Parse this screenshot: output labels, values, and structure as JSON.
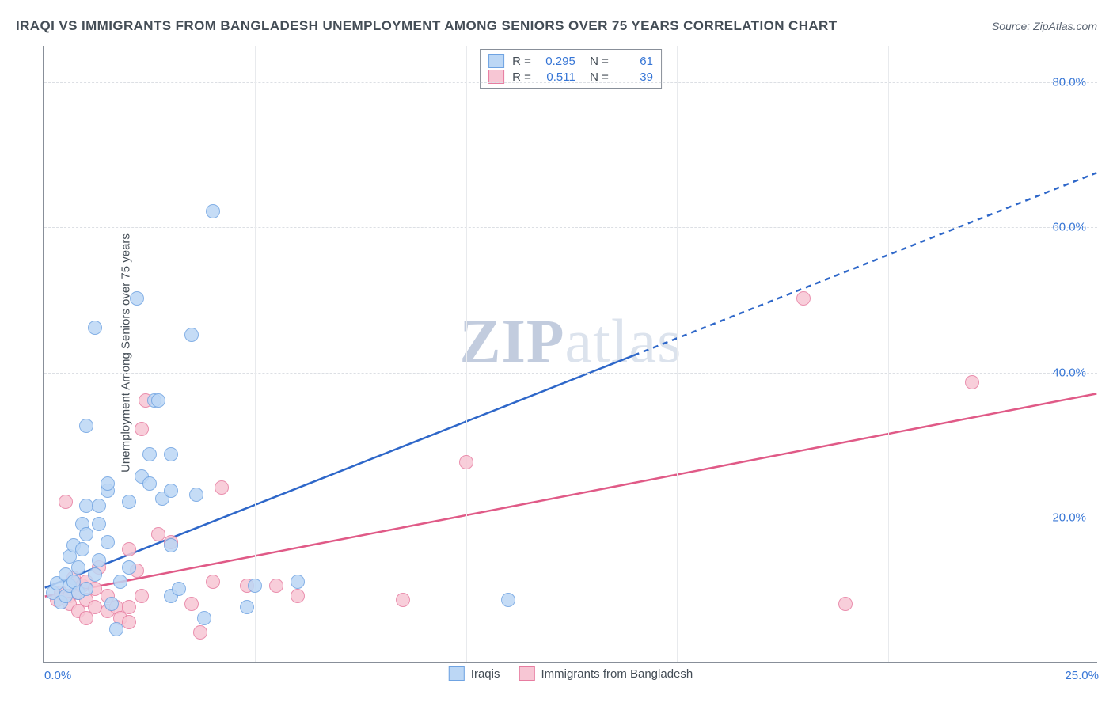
{
  "header": {
    "title": "IRAQI VS IMMIGRANTS FROM BANGLADESH UNEMPLOYMENT AMONG SENIORS OVER 75 YEARS CORRELATION CHART",
    "source": "Source: ZipAtlas.com"
  },
  "watermark": {
    "bold": "ZIP",
    "light": "atlas"
  },
  "chart": {
    "type": "scatter",
    "ylabel": "Unemployment Among Seniors over 75 years",
    "xlim": [
      0,
      25
    ],
    "ylim": [
      0,
      85
    ],
    "ytick_values": [
      20,
      40,
      60,
      80
    ],
    "ytick_labels": [
      "20.0%",
      "40.0%",
      "60.0%",
      "80.0%"
    ],
    "grid_h_values": [
      20,
      40,
      60,
      80
    ],
    "grid_v_values": [
      5,
      10,
      15,
      20
    ],
    "x_first_label": "0.0%",
    "x_last_label": "25.0%",
    "grid_color": "#dcdfe4",
    "background_color": "#ffffff",
    "series": [
      {
        "name": "Iraqis",
        "fill": "#bcd7f5",
        "stroke": "#6fa3e2",
        "line_color": "#2e67c9",
        "R": "0.295",
        "N": "61",
        "regression": {
          "x1": 0,
          "y1": 10.2,
          "x2": 25,
          "y2": 67.5,
          "x_solid_max": 14.0
        },
        "points": [
          [
            0.2,
            9.5
          ],
          [
            0.3,
            10.8
          ],
          [
            0.4,
            8.2
          ],
          [
            0.5,
            12.0
          ],
          [
            0.5,
            9.0
          ],
          [
            0.6,
            10.5
          ],
          [
            0.6,
            14.5
          ],
          [
            0.7,
            16.0
          ],
          [
            0.7,
            11.0
          ],
          [
            0.8,
            9.5
          ],
          [
            0.8,
            13.0
          ],
          [
            0.9,
            15.5
          ],
          [
            0.9,
            19.0
          ],
          [
            1.0,
            10.0
          ],
          [
            1.0,
            17.5
          ],
          [
            1.0,
            21.5
          ],
          [
            1.0,
            32.5
          ],
          [
            1.2,
            12.0
          ],
          [
            1.2,
            46.0
          ],
          [
            1.3,
            14.0
          ],
          [
            1.3,
            19.0
          ],
          [
            1.3,
            21.5
          ],
          [
            1.5,
            16.5
          ],
          [
            1.5,
            23.5
          ],
          [
            1.5,
            24.5
          ],
          [
            1.6,
            8.0
          ],
          [
            1.7,
            4.5
          ],
          [
            1.8,
            11.0
          ],
          [
            2.0,
            13.0
          ],
          [
            2.0,
            22.0
          ],
          [
            2.2,
            50.0
          ],
          [
            2.3,
            25.5
          ],
          [
            2.5,
            24.5
          ],
          [
            2.5,
            28.5
          ],
          [
            2.6,
            36.0
          ],
          [
            2.7,
            36.0
          ],
          [
            2.8,
            22.5
          ],
          [
            3.0,
            9.0
          ],
          [
            3.0,
            16.0
          ],
          [
            3.0,
            23.5
          ],
          [
            3.0,
            28.5
          ],
          [
            3.2,
            10.0
          ],
          [
            3.5,
            45.0
          ],
          [
            3.6,
            23.0
          ],
          [
            3.8,
            6.0
          ],
          [
            4.0,
            62.0
          ],
          [
            4.8,
            7.5
          ],
          [
            5.0,
            10.5
          ],
          [
            6.0,
            11.0
          ],
          [
            11.0,
            8.5
          ]
        ]
      },
      {
        "name": "Immigrants from Bangladesh",
        "fill": "#f7c6d4",
        "stroke": "#e77ca0",
        "line_color": "#e05a87",
        "R": "0.511",
        "N": "39",
        "regression": {
          "x1": 0,
          "y1": 9.0,
          "x2": 25,
          "y2": 37.0,
          "x_solid_max": 25.0
        },
        "points": [
          [
            0.3,
            8.5
          ],
          [
            0.4,
            9.5
          ],
          [
            0.5,
            22.0
          ],
          [
            0.6,
            9.0
          ],
          [
            0.6,
            8.0
          ],
          [
            0.7,
            11.5
          ],
          [
            0.8,
            9.5
          ],
          [
            0.8,
            7.0
          ],
          [
            0.9,
            10.5
          ],
          [
            1.0,
            8.5
          ],
          [
            1.0,
            11.0
          ],
          [
            1.0,
            6.0
          ],
          [
            1.2,
            7.5
          ],
          [
            1.2,
            10.0
          ],
          [
            1.3,
            13.0
          ],
          [
            1.5,
            9.0
          ],
          [
            1.5,
            7.0
          ],
          [
            1.7,
            7.5
          ],
          [
            1.8,
            6.0
          ],
          [
            2.0,
            5.5
          ],
          [
            2.0,
            15.5
          ],
          [
            2.0,
            7.5
          ],
          [
            2.2,
            12.5
          ],
          [
            2.3,
            9.0
          ],
          [
            2.3,
            32.0
          ],
          [
            2.4,
            36.0
          ],
          [
            2.7,
            17.5
          ],
          [
            3.0,
            16.5
          ],
          [
            3.5,
            8.0
          ],
          [
            3.7,
            4.0
          ],
          [
            4.0,
            11.0
          ],
          [
            4.2,
            24.0
          ],
          [
            4.8,
            10.5
          ],
          [
            5.5,
            10.5
          ],
          [
            6.0,
            9.0
          ],
          [
            8.5,
            8.5
          ],
          [
            10.0,
            27.5
          ],
          [
            18.0,
            50.0
          ],
          [
            19.0,
            8.0
          ],
          [
            22.0,
            38.5
          ]
        ]
      }
    ],
    "legend_bottom": [
      "Iraqis",
      "Immigrants from Bangladesh"
    ]
  }
}
